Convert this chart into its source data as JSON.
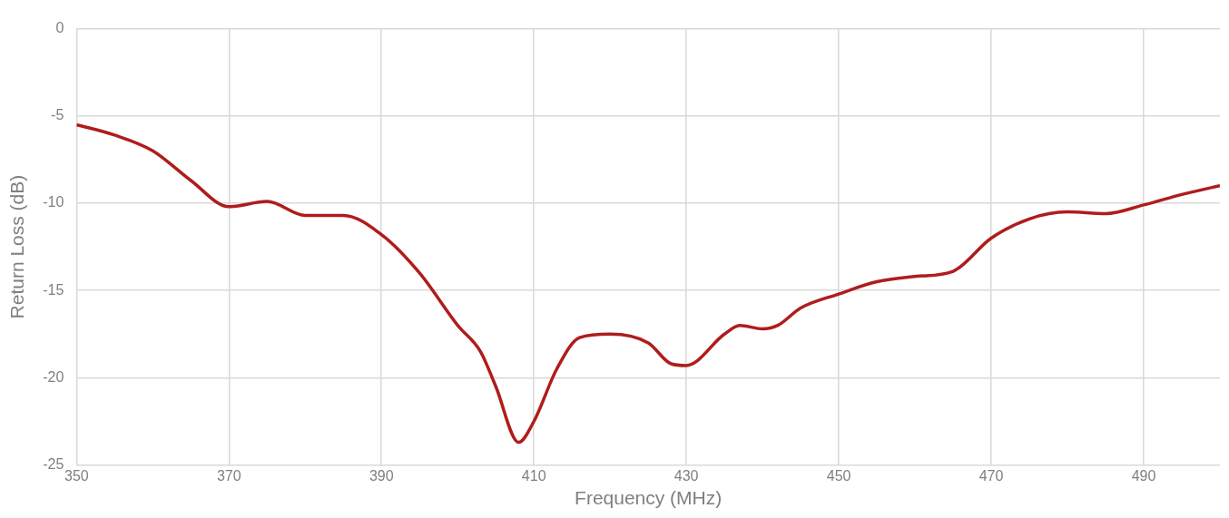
{
  "chart_data": {
    "type": "line",
    "xlabel": "Frequency (MHz)",
    "ylabel": "Return Loss (dB)",
    "xlim": [
      350,
      500
    ],
    "xticks": [
      350,
      370,
      390,
      410,
      430,
      450,
      470,
      490
    ],
    "ylim": [
      -25,
      0
    ],
    "yticks": [
      -25,
      -20,
      -15,
      -10,
      -5,
      0
    ],
    "grid": true,
    "legend": false,
    "marker": "none",
    "line_style": "solid",
    "x": [
      350,
      355,
      360,
      365,
      370,
      375,
      380,
      385,
      390,
      395,
      400,
      403,
      405,
      408,
      410,
      413,
      416,
      420,
      425,
      428,
      430,
      435,
      437,
      440,
      442,
      445,
      450,
      455,
      460,
      465,
      470,
      475,
      480,
      485,
      490,
      495,
      500
    ],
    "series": [
      {
        "color": "#b01c1c",
        "values": [
          -5.5,
          -6.1,
          -7.0,
          -8.7,
          -10.2,
          -9.9,
          -10.7,
          -10.7,
          -11.8,
          -14.0,
          -17.0,
          -18.5,
          -20.5,
          -23.7,
          -22.5,
          -19.5,
          -17.7,
          -17.5,
          -18.0,
          -19.2,
          -19.3,
          -17.5,
          -17.0,
          -17.2,
          -17.0,
          -16.0,
          -15.2,
          -14.5,
          -14.2,
          -13.9,
          -12.0,
          -10.9,
          -10.5,
          -10.6,
          -10.1,
          -9.5,
          -9.0
        ]
      }
    ]
  }
}
